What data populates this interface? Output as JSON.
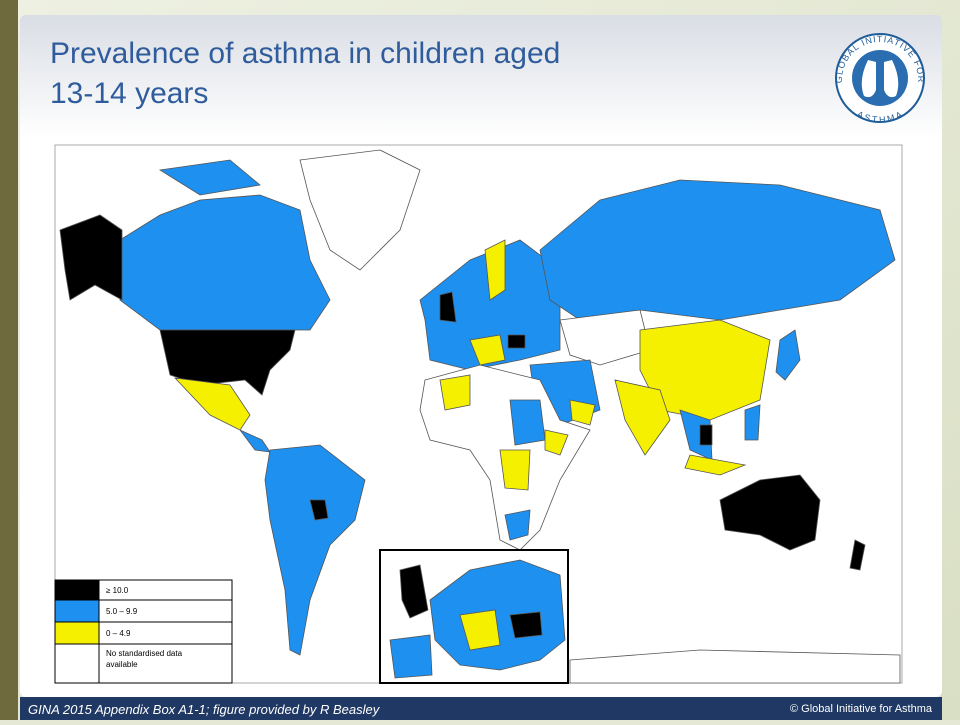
{
  "slide": {
    "title_lines": [
      "Prevalence of asthma in children aged",
      "13-14 years"
    ],
    "logo": {
      "top_text": "GLOBAL INITIATIVE FOR",
      "bottom_text": "ASTHMA"
    },
    "legend": [
      {
        "label": "≥ 10.0",
        "color": "#000000"
      },
      {
        "label": "5.0 – 9.9",
        "color": "#1e90f0"
      },
      {
        "label": "0 – 4.9",
        "color": "#f5f000"
      },
      {
        "label": "No standardised data available",
        "color": "#ffffff"
      }
    ],
    "footer": {
      "source": "GINA 2015 Appendix Box A1-1; figure provided by R Beasley",
      "copyright": "© Global Initiative for Asthma"
    }
  }
}
